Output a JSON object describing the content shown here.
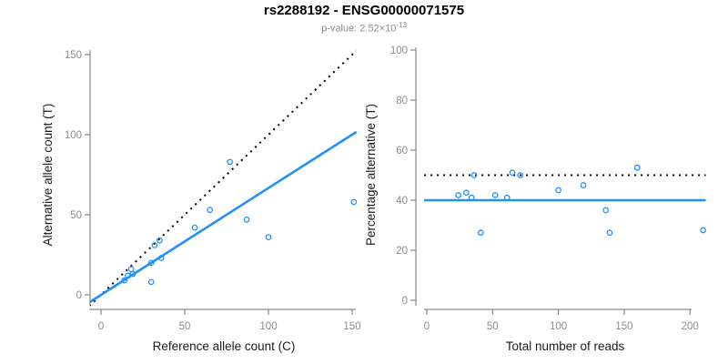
{
  "header": {
    "title": "rs2288192 - ENSG00000071575",
    "pvalue_text": "p-value: 2.52×10",
    "pvalue_exponent": "-13"
  },
  "colors": {
    "title_black": "#000000",
    "subtitle_gray": "#8c8c8c",
    "axis_gray": "#8a8a8a",
    "tick_label_gray": "#8c8c8c",
    "axis_title_dark": "#1a1a1a",
    "point_blue": "#1E90FF",
    "line_blue": "#1E90FF",
    "identity_black": "#000000"
  },
  "chart_data": [
    {
      "panel": "allele-count-scatter",
      "type": "scatter",
      "xlabel": "Reference allele count (C)",
      "ylabel": "Alternative allele count (T)",
      "xlim": [
        0,
        150
      ],
      "ylim": [
        0,
        150
      ],
      "xticks": [
        0,
        50,
        100,
        150
      ],
      "yticks": [
        0,
        50,
        100,
        150
      ],
      "grid": false,
      "marker": "open-circle",
      "point_color": "#1E90FF",
      "points": [
        [
          14,
          9
        ],
        [
          16,
          12
        ],
        [
          18,
          16
        ],
        [
          19,
          13
        ],
        [
          30,
          8
        ],
        [
          30,
          20
        ],
        [
          32,
          31
        ],
        [
          35,
          34
        ],
        [
          36,
          23
        ],
        [
          56,
          42
        ],
        [
          65,
          53
        ],
        [
          77,
          83
        ],
        [
          87,
          47
        ],
        [
          100,
          36
        ],
        [
          151,
          58
        ]
      ],
      "lines": [
        {
          "name": "identity-line",
          "label": "1:1 ratio",
          "style": "dotted",
          "color": "#000000",
          "slope": 1,
          "intercept": 0
        },
        {
          "name": "fit-line",
          "label": "observed ratio",
          "style": "solid",
          "color": "#1E90FF",
          "slope": 0.667,
          "intercept": 0
        }
      ]
    },
    {
      "panel": "percentage-scatter",
      "type": "scatter",
      "xlabel": "Total number of reads",
      "ylabel": "Percentage alternative (T)",
      "xlim": [
        0,
        210
      ],
      "ylim": [
        0,
        100
      ],
      "xticks": [
        0,
        50,
        100,
        150,
        200
      ],
      "yticks": [
        0,
        20,
        40,
        60,
        80,
        100
      ],
      "grid": false,
      "marker": "open-circle",
      "point_color": "#1E90FF",
      "points": [
        [
          24,
          42
        ],
        [
          30,
          43
        ],
        [
          34,
          41
        ],
        [
          36,
          50
        ],
        [
          41,
          27
        ],
        [
          52,
          42
        ],
        [
          61,
          41
        ],
        [
          65,
          51
        ],
        [
          71,
          50
        ],
        [
          100,
          44
        ],
        [
          119,
          46
        ],
        [
          136,
          36
        ],
        [
          139,
          27
        ],
        [
          160,
          53
        ],
        [
          210,
          28
        ]
      ],
      "lines": [
        {
          "name": "expected-percentage-line",
          "label": "expected 50%",
          "style": "dotted",
          "color": "#000000",
          "slope": 0,
          "intercept": 50
        },
        {
          "name": "observed-percentage-line",
          "label": "observed 40%",
          "style": "solid",
          "color": "#1E90FF",
          "slope": 0,
          "intercept": 40
        }
      ]
    }
  ]
}
